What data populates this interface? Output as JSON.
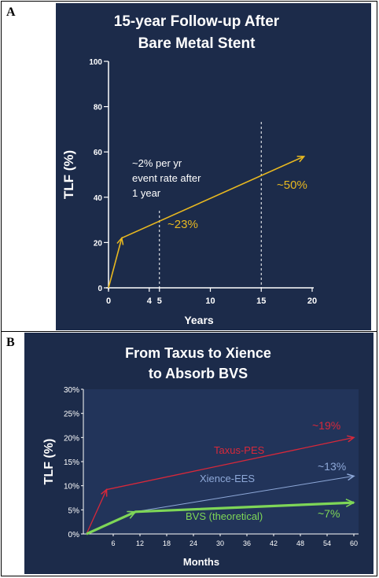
{
  "panels": [
    {
      "letter": "A"
    },
    {
      "letter": "B"
    }
  ],
  "chart_data": [
    {
      "type": "line",
      "title": "15-year Follow-up After Bare Metal Stent",
      "title_lines": [
        "15-year Follow-up After",
        "Bare Metal Stent"
      ],
      "xlabel": "Years",
      "ylabel": "TLF (%)",
      "xlim": [
        0,
        20
      ],
      "ylim": [
        0,
        100
      ],
      "x_ticks": [
        "0",
        "4",
        "5",
        "10",
        "15",
        "20"
      ],
      "x_tick_values": [
        0,
        4,
        5,
        10,
        15,
        20
      ],
      "y_ticks": [
        "0",
        "20",
        "40",
        "60",
        "80",
        "100"
      ],
      "y_tick_values": [
        0,
        20,
        40,
        60,
        80,
        100
      ],
      "background": "#1c2b4a",
      "series": [
        {
          "color": "#e8b820",
          "x": [
            0,
            1.3,
            19.2
          ],
          "y": [
            0,
            22,
            58
          ]
        }
      ],
      "reference_lines_x": [
        5,
        15
      ],
      "annotations": [
        {
          "text": "~23%",
          "color": "#e8b820"
        },
        {
          "text": "~50%",
          "color": "#e8b820"
        }
      ],
      "note_lines": [
        "~2% per yr",
        "event rate after",
        "1 year"
      ]
    },
    {
      "type": "line",
      "title": "From Taxus to Xience to Absorb BVS",
      "title_lines": [
        "From Taxus to Xience",
        "to Absorb BVS"
      ],
      "xlabel": "Months",
      "ylabel": "TLF (%)",
      "xlim": [
        0,
        60
      ],
      "ylim": [
        0,
        30
      ],
      "x_ticks": [
        "6",
        "12",
        "18",
        "24",
        "30",
        "36",
        "42",
        "48",
        "54",
        "60"
      ],
      "x_tick_values": [
        6,
        12,
        18,
        24,
        30,
        36,
        42,
        48,
        54,
        60
      ],
      "y_ticks": [
        "0%",
        "5%",
        "10%",
        "15%",
        "20%",
        "25%",
        "30%"
      ],
      "y_tick_values": [
        0,
        5,
        10,
        15,
        20,
        25,
        30
      ],
      "background": "#1c2b4a",
      "series": [
        {
          "name": "Taxus-PES",
          "color": "#d8283a",
          "x": [
            0,
            4.5,
            60
          ],
          "y": [
            0,
            9.2,
            20
          ]
        },
        {
          "name": "Xience-EES",
          "color": "#8ea8d8",
          "x": [
            0,
            11,
            60
          ],
          "y": [
            0,
            4.6,
            12
          ]
        },
        {
          "name": "BVS (theoretical)",
          "color": "#7ed657",
          "x": [
            0,
            11,
            60
          ],
          "y": [
            0,
            4.6,
            6.5
          ]
        }
      ],
      "annotations": [
        {
          "text": "~19%",
          "color": "#d8283a"
        },
        {
          "text": "~13%",
          "color": "#8ea8d8"
        },
        {
          "text": "~7%",
          "color": "#7ed657"
        }
      ]
    }
  ]
}
